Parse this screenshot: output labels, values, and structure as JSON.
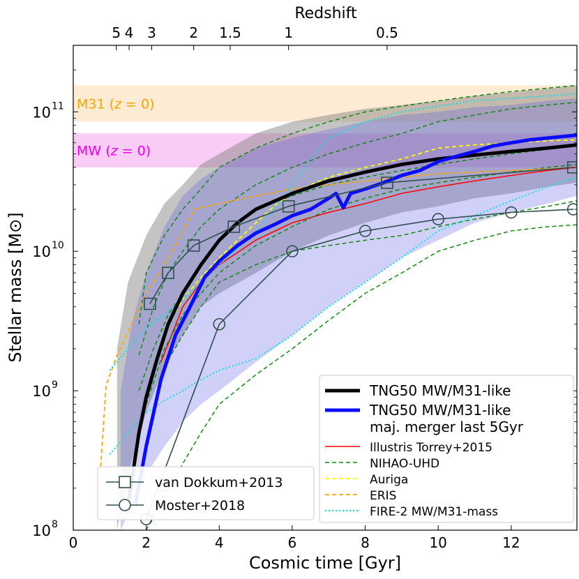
{
  "chart_data": {
    "type": "line",
    "xlabel": "Cosmic time [Gyr]",
    "ylabel": "Stellar mass [M⊙]",
    "top_xlabel": "Redshift",
    "xlim": [
      0,
      13.8
    ],
    "ylim": [
      100000000.0,
      300000000000.0
    ],
    "yscale": "log",
    "x_ticks": [
      {
        "value": 0,
        "label": "0"
      },
      {
        "value": 2,
        "label": "2"
      },
      {
        "value": 4,
        "label": "4"
      },
      {
        "value": 6,
        "label": "6"
      },
      {
        "value": 8,
        "label": "8"
      },
      {
        "value": 10,
        "label": "10"
      },
      {
        "value": 12,
        "label": "12"
      }
    ],
    "y_ticks": [
      {
        "value": 100000000.0,
        "label": "10",
        "exp": "8"
      },
      {
        "value": 1000000000.0,
        "label": "10",
        "exp": "9"
      },
      {
        "value": 10000000000.0,
        "label": "10",
        "exp": "10"
      },
      {
        "value": 100000000000.0,
        "label": "10",
        "exp": "11"
      }
    ],
    "redshift_ticks": [
      {
        "t": 1.18,
        "label": "5"
      },
      {
        "t": 1.53,
        "label": "4"
      },
      {
        "t": 2.15,
        "label": "3"
      },
      {
        "t": 3.3,
        "label": "2"
      },
      {
        "t": 4.3,
        "label": "1.5"
      },
      {
        "t": 5.9,
        "label": "1"
      },
      {
        "t": 8.6,
        "label": "0.5"
      }
    ],
    "reference_bands": [
      {
        "name": "M31",
        "label_main": "M31 (",
        "label_var": "z",
        "label_tail": " = 0)",
        "ymin": 85000000000.0,
        "ymax": 155000000000.0,
        "color": "#fdebd3",
        "text_color": "#f5a500"
      },
      {
        "name": "MW",
        "label_main": "MW (",
        "label_var": "z",
        "label_tail": " = 0)",
        "ymin": 40000000000.0,
        "ymax": 70000000000.0,
        "color": "#f9ccf6",
        "text_color": "#ee00ee"
      }
    ],
    "shaded_ranges": [
      {
        "name": "TNG50 MW/M31-like scatter",
        "color": "#7c7c7c",
        "opacity": 0.45,
        "x": [
          1.2,
          1.5,
          2.0,
          2.5,
          3.0,
          3.5,
          4.0,
          5.0,
          6.0,
          7.0,
          8.0,
          9.0,
          10.0,
          11.0,
          12.0,
          13.0,
          13.8
        ],
        "upper": [
          2000000000.0,
          6000000000.0,
          13000000000.0,
          22000000000.0,
          30000000000.0,
          42000000000.0,
          50000000000.0,
          70000000000.0,
          85000000000.0,
          95000000000.0,
          105000000000.0,
          112000000000.0,
          120000000000.0,
          130000000000.0,
          138000000000.0,
          147000000000.0,
          155000000000.0
        ],
        "lower": [
          100000000.0,
          250000000.0,
          700000000.0,
          1500000000.0,
          2500000000.0,
          4000000000.0,
          5000000000.0,
          7000000000.0,
          10000000000.0,
          13000000000.0,
          16000000000.0,
          19000000000.0,
          21000000000.0,
          24000000000.0,
          26000000000.0,
          29000000000.0,
          31000000000.0
        ]
      },
      {
        "name": "TNG50 major merger scatter",
        "color": "#5757e6",
        "opacity": 0.28,
        "x": [
          1.3,
          1.6,
          2.0,
          2.5,
          3.0,
          3.5,
          4.0,
          5.0,
          6.0,
          7.0,
          8.0,
          9.0,
          10.0,
          11.0,
          12.0,
          13.0,
          13.8
        ],
        "upper": [
          1000000000.0,
          3000000000.0,
          7000000000.0,
          15000000000.0,
          25000000000.0,
          33000000000.0,
          40000000000.0,
          55000000000.0,
          65000000000.0,
          75000000000.0,
          85000000000.0,
          95000000000.0,
          100000000000.0,
          108000000000.0,
          112000000000.0,
          120000000000.0,
          125000000000.0
        ],
        "lower": [
          100000000.0,
          150000000.0,
          250000000.0,
          400000000.0,
          600000000.0,
          800000000.0,
          1000000000.0,
          1600000000.0,
          2500000000.0,
          4000000000.0,
          6000000000.0,
          9000000000.0,
          12000000000.0,
          16000000000.0,
          19000000000.0,
          22000000000.0,
          25000000000.0
        ]
      }
    ],
    "series": [
      {
        "name": "TNG50 MW/M31-like",
        "color": "#000000",
        "width": 5,
        "dash": "",
        "x": [
          1.5,
          1.8,
          2.0,
          2.3,
          2.6,
          3.0,
          3.5,
          4.0,
          4.5,
          5.0,
          6.0,
          7.0,
          8.0,
          9.0,
          10.0,
          11.0,
          12.0,
          13.0,
          13.8
        ],
        "y": [
          150000000.0,
          500000000.0,
          900000000.0,
          1700000000.0,
          3000000000.0,
          5000000000.0,
          8000000000.0,
          12000000000.0,
          16000000000.0,
          20000000000.0,
          26000000000.0,
          32000000000.0,
          37000000000.0,
          42000000000.0,
          46000000000.0,
          49000000000.0,
          52000000000.0,
          55000000000.0,
          58000000000.0
        ]
      },
      {
        "name": "TNG50 MW/M31-like maj. merger last 5Gyr",
        "color": "#0b0bff",
        "width": 5,
        "dash": "",
        "x": [
          1.7,
          2.0,
          2.4,
          2.8,
          3.2,
          3.6,
          4.0,
          4.5,
          5.0,
          5.5,
          6.0,
          6.5,
          7.0,
          7.2,
          7.4,
          7.6,
          8.0,
          8.5,
          9.0,
          9.5,
          10.0,
          10.5,
          11.0,
          11.5,
          12.0,
          12.5,
          13.0,
          13.8
        ],
        "y": [
          150000000.0,
          400000000.0,
          1200000000.0,
          2500000000.0,
          4000000000.0,
          6500000000.0,
          8500000000.0,
          11000000000.0,
          13500000000.0,
          15500000000.0,
          18000000000.0,
          20000000000.0,
          24000000000.0,
          26000000000.0,
          20500000000.0,
          26000000000.0,
          28000000000.0,
          31000000000.0,
          35000000000.0,
          38000000000.0,
          44000000000.0,
          48000000000.0,
          52000000000.0,
          57000000000.0,
          60000000000.0,
          63000000000.0,
          65000000000.0,
          68000000000.0
        ]
      },
      {
        "name": "Illustris Torrey+2015",
        "color": "#ff0000",
        "width": 1.5,
        "dash": "",
        "x": [
          2.4,
          3.0,
          3.5,
          4.0,
          5.0,
          6.0,
          7.0,
          8.0,
          9.0,
          10.0,
          11.0,
          12.0,
          13.0,
          13.8
        ],
        "y": [
          1600000000.0,
          4000000000.0,
          6000000000.0,
          8000000000.0,
          12000000000.0,
          16000000000.0,
          19000000000.0,
          22000000000.0,
          26000000000.0,
          29000000000.0,
          32000000000.0,
          35000000000.0,
          38000000000.0,
          40000000000.0
        ]
      },
      {
        "name": "NIHAO-UHD 1",
        "color": "#118811",
        "width": 1.5,
        "dash": "6,4",
        "x": [
          1.8,
          2.0,
          2.5,
          3.0,
          3.5,
          4.0,
          5.0,
          6.0,
          7.0,
          8.0,
          9.0,
          10.0,
          11.0,
          12.0,
          13.0,
          13.8
        ],
        "y": [
          3000000000.0,
          7000000000.0,
          13000000000.0,
          20000000000.0,
          28000000000.0,
          40000000000.0,
          55000000000.0,
          70000000000.0,
          85000000000.0,
          100000000000.0,
          110000000000.0,
          120000000000.0,
          130000000000.0,
          140000000000.0,
          148000000000.0,
          155000000000.0
        ]
      },
      {
        "name": "NIHAO-UHD 2",
        "color": "#118811",
        "width": 1.5,
        "dash": "6,4",
        "x": [
          1.8,
          2.2,
          2.6,
          3.0,
          3.5,
          4.0,
          5.0,
          6.0,
          7.0,
          8.0,
          9.0,
          10.0,
          11.0,
          12.0,
          13.0,
          13.8
        ],
        "y": [
          1800000000.0,
          4000000000.0,
          7000000000.0,
          10000000000.0,
          15000000000.0,
          20000000000.0,
          30000000000.0,
          40000000000.0,
          50000000000.0,
          60000000000.0,
          70000000000.0,
          85000000000.0,
          95000000000.0,
          105000000000.0,
          112000000000.0,
          117000000000.0
        ]
      },
      {
        "name": "NIHAO-UHD 3",
        "color": "#118811",
        "width": 1.5,
        "dash": "6,4",
        "x": [
          1.8,
          2.2,
          2.6,
          3.0,
          3.5,
          4.0,
          4.5,
          5.0,
          6.0,
          7.0,
          8.0,
          9.0,
          10.0,
          11.0,
          12.0,
          13.0,
          13.8
        ],
        "y": [
          1000000000.0,
          2000000000.0,
          3500000000.0,
          5000000000.0,
          8000000000.0,
          12000000000.0,
          16000000000.0,
          20000000000.0,
          25000000000.0,
          30000000000.0,
          34000000000.0,
          38000000000.0,
          42000000000.0,
          46000000000.0,
          50000000000.0,
          54000000000.0,
          58000000000.0
        ]
      },
      {
        "name": "NIHAO-UHD 4",
        "color": "#118811",
        "width": 1.5,
        "dash": "6,4",
        "x": [
          2.0,
          2.5,
          3.0,
          3.5,
          4.0,
          5.0,
          6.0,
          7.0,
          8.0,
          9.0,
          10.0,
          11.0,
          12.0,
          13.0,
          13.8
        ],
        "y": [
          800000000.0,
          2000000000.0,
          3500000000.0,
          5000000000.0,
          7000000000.0,
          11000000000.0,
          15000000000.0,
          20000000000.0,
          24000000000.0,
          28000000000.0,
          31000000000.0,
          34000000000.0,
          37000000000.0,
          40000000000.0,
          42000000000.0
        ]
      },
      {
        "name": "NIHAO-UHD 5",
        "color": "#118811",
        "width": 1.5,
        "dash": "6,4",
        "x": [
          2.5,
          3.0,
          3.5,
          4.0,
          5.0,
          6.0,
          7.0,
          8.0,
          9.0,
          10.0,
          11.0,
          12.0,
          13.0,
          13.8
        ],
        "y": [
          1500000000.0,
          2500000000.0,
          4000000000.0,
          6000000000.0,
          8000000000.0,
          10000000000.0,
          11000000000.0,
          12000000000.0,
          13000000000.0,
          15000000000.0,
          17000000000.0,
          19000000000.0,
          21000000000.0,
          23000000000.0
        ]
      },
      {
        "name": "NIHAO-UHD 6",
        "color": "#118811",
        "width": 1.5,
        "dash": "6,4",
        "x": [
          2.0,
          2.5,
          3.0,
          3.5,
          4.0,
          5.0,
          6.0,
          7.0,
          8.0,
          9.0,
          10.0,
          11.0,
          12.0,
          13.0,
          13.8
        ],
        "y": [
          100000000.0,
          180000000.0,
          300000000.0,
          500000000.0,
          800000000.0,
          1300000000.0,
          2000000000.0,
          3200000000.0,
          5000000000.0,
          7000000000.0,
          10000000000.0,
          12000000000.0,
          14000000000.0,
          15000000000.0,
          15500000000.0
        ]
      },
      {
        "name": "Auriga",
        "color": "#ffff00",
        "width": 1.8,
        "dash": "6,4",
        "x": [
          2.6,
          3.0,
          3.5,
          4.0,
          4.5,
          5.0,
          5.5,
          6.0,
          6.5,
          7.0,
          8.0,
          9.0,
          10.0,
          11.0,
          12.0,
          13.0,
          13.8
        ],
        "y": [
          3000000000.0,
          4500000000.0,
          6500000000.0,
          9000000000.0,
          12000000000.0,
          16000000000.0,
          21000000000.0,
          26000000000.0,
          30000000000.0,
          34000000000.0,
          40000000000.0,
          46000000000.0,
          55000000000.0,
          58000000000.0,
          60000000000.0,
          62000000000.0,
          63000000000.0
        ]
      },
      {
        "name": "ERIS",
        "color": "#ffa500",
        "width": 1.8,
        "dash": "6,4",
        "x": [
          0.7,
          0.9,
          1.2,
          1.6,
          2.0,
          2.5,
          3.0,
          3.3,
          4.0,
          5.0,
          6.0,
          7.0,
          8.0,
          9.0,
          10.0,
          11.0,
          12.0,
          13.0,
          13.8
        ],
        "y": [
          180000000.0,
          1100000000.0,
          1800000000.0,
          3000000000.0,
          5000000000.0,
          8000000000.0,
          14000000000.0,
          20000000000.0,
          22000000000.0,
          25000000000.0,
          28000000000.0,
          30000000000.0,
          32000000000.0,
          34000000000.0,
          36000000000.0,
          37000000000.0,
          38000000000.0,
          39000000000.0,
          40000000000.0
        ]
      },
      {
        "name": "FIRE-2 MW/M31-mass 1",
        "color": "#00e5e5",
        "width": 2,
        "dash": "2,3",
        "x": [
          1.0,
          1.5,
          2.0,
          2.5,
          3.0,
          3.5,
          4.0,
          4.5,
          5.0,
          5.5,
          6.0,
          6.5,
          7.0,
          8.0,
          9.0,
          10.0,
          11.0,
          12.0,
          13.0,
          13.8
        ],
        "y": [
          1400000000.0,
          2000000000.0,
          2800000000.0,
          3500000000.0,
          4500000000.0,
          6000000000.0,
          8000000000.0,
          10500000000.0,
          14000000000.0,
          20000000000.0,
          30000000000.0,
          45000000000.0,
          65000000000.0,
          85000000000.0,
          100000000000.0,
          110000000000.0,
          120000000000.0,
          125000000000.0,
          130000000000.0,
          135000000000.0
        ]
      },
      {
        "name": "FIRE-2 MW/M31-mass 2",
        "color": "#00e5e5",
        "width": 2,
        "dash": "2,3",
        "x": [
          1.0,
          1.5,
          2.0,
          2.5,
          3.0,
          3.5,
          4.0,
          5.0,
          6.0,
          7.0,
          8.0,
          9.0,
          10.0,
          11.0,
          12.0,
          13.0,
          13.8
        ],
        "y": [
          350000000.0,
          500000000.0,
          700000000.0,
          850000000.0,
          1000000000.0,
          1200000000.0,
          1400000000.0,
          1700000000.0,
          2500000000.0,
          4000000000.0,
          6000000000.0,
          9000000000.0,
          14000000000.0,
          18000000000.0,
          23000000000.0,
          29000000000.0,
          34000000000.0
        ]
      }
    ],
    "reference_points": [
      {
        "name": "van Dokkum+2013",
        "marker": "square",
        "color": "#2f4f4f",
        "x": [
          2.1,
          2.6,
          3.3,
          4.4,
          5.9,
          8.6,
          13.7
        ],
        "y": [
          4200000000.0,
          7000000000.0,
          11000000000.0,
          15000000000.0,
          21000000000.0,
          31000000000.0,
          40000000000.0
        ]
      },
      {
        "name": "Moster+2018",
        "marker": "circle",
        "color": "#2f4f4f",
        "x": [
          2.0,
          4.0,
          6.0,
          8.0,
          10.0,
          12.0,
          13.7
        ],
        "y": [
          120000000.0,
          3000000000.0,
          10000000000.0,
          14000000000.0,
          17000000000.0,
          19000000000.0,
          20000000000.0
        ]
      }
    ],
    "legend_main": [
      {
        "label": "TNG50 MW/M31-like",
        "label2": "",
        "color": "#000000",
        "width": 5,
        "dash": ""
      },
      {
        "label": "TNG50 MW/M31-like",
        "label2": "maj. merger last 5Gyr",
        "color": "#0b0bff",
        "width": 5,
        "dash": ""
      },
      {
        "label": "Illustris Torrey+2015",
        "label2": "",
        "color": "#ff0000",
        "width": 1.5,
        "dash": ""
      },
      {
        "label": "NIHAO-UHD",
        "label2": "",
        "color": "#118811",
        "width": 1.5,
        "dash": "6,4"
      },
      {
        "label": "Auriga",
        "label2": "",
        "color": "#ffff00",
        "width": 1.8,
        "dash": "6,4"
      },
      {
        "label": "ERIS",
        "label2": "",
        "color": "#ffa500",
        "width": 1.8,
        "dash": "6,4"
      },
      {
        "label": "FIRE-2 MW/M31-mass",
        "label2": "",
        "color": "#00e5e5",
        "width": 2,
        "dash": "2,3"
      }
    ],
    "legend_points": [
      {
        "label": "van Dokkum+2013",
        "marker": "square"
      },
      {
        "label": "Moster+2018",
        "marker": "circle"
      }
    ]
  }
}
